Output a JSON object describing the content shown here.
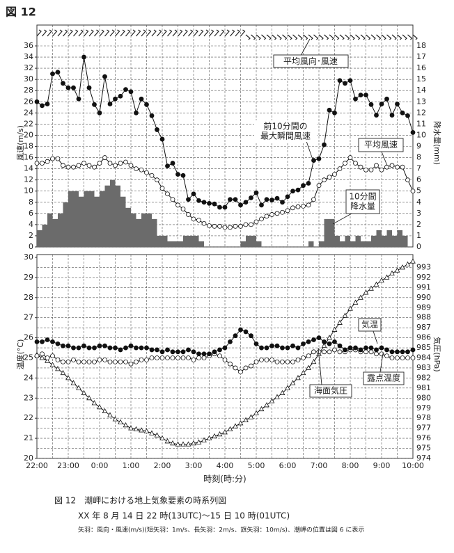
{
  "figure_title": "図 12",
  "caption": [
    "図 12　潮岬における地上気象要素の時系列図",
    "XX 年 8 月 14 日 22 時(13UTC)～15 日 10 時(01UTC)",
    "矢羽：風向・風速(m/s)(短矢羽：1m/s、長矢羽：2m/s、旗矢羽：10m/s)、潮岬の位置は図 6 に表示"
  ],
  "chart_data": [
    {
      "type": "line",
      "y_label": "風速(m/s)",
      "y2_label": "降水量(mm)",
      "annotations": [
        "平均風向･風速"
      ],
      "x": [
        "22:00",
        "22:10",
        "22:20",
        "22:30",
        "22:40",
        "22:50",
        "23:00",
        "23:10",
        "23:20",
        "23:30",
        "23:40",
        "23:50",
        "0:00",
        "0:10",
        "0:20",
        "0:30",
        "0:40",
        "0:50",
        "1:00",
        "1:10",
        "1:20",
        "1:30",
        "1:40",
        "1:50",
        "2:00",
        "2:10",
        "2:20",
        "2:30",
        "2:40",
        "2:50",
        "3:00",
        "3:10",
        "3:20",
        "3:30",
        "3:40",
        "3:50",
        "4:00",
        "4:10",
        "4:20",
        "4:30",
        "4:40",
        "4:50",
        "5:00",
        "5:10",
        "5:20",
        "5:30",
        "5:40",
        "5:50",
        "6:00",
        "6:10",
        "6:20",
        "6:30",
        "6:40",
        "6:50",
        "7:00",
        "7:10",
        "7:20",
        "7:30",
        "7:40",
        "7:50",
        "8:00",
        "8:10",
        "8:20",
        "8:30",
        "8:40",
        "8:50",
        "9:00",
        "9:10",
        "9:20",
        "9:30",
        "9:40",
        "9:50",
        "10:00"
      ],
      "ylim": [
        0,
        36
      ],
      "yticks": [
        0,
        2,
        4,
        6,
        8,
        10,
        12,
        14,
        16,
        18,
        20,
        22,
        24,
        26,
        28,
        30,
        32,
        34,
        36
      ],
      "y2lim": [
        0,
        18
      ],
      "y2ticks": [
        0,
        1,
        2,
        3,
        4,
        5,
        6,
        7,
        8,
        9,
        10,
        11,
        12,
        13,
        14,
        15,
        16,
        17,
        18
      ],
      "grid": true,
      "series": [
        {
          "name": [
            "10分間",
            "降水量"
          ],
          "type": "bar",
          "axis": "y2",
          "color": "#6b6b6b",
          "values": [
            1.5,
            2,
            3,
            2.5,
            3,
            4,
            5,
            5,
            4.5,
            5,
            5,
            4.5,
            5,
            5.5,
            6,
            5.5,
            4.5,
            3.5,
            3,
            2.5,
            3,
            3,
            2.5,
            1,
            1,
            0.5,
            0.5,
            0.5,
            1,
            1,
            1,
            0.5,
            0,
            0,
            0,
            0,
            0,
            0,
            0,
            0.5,
            1,
            1,
            0.5,
            0,
            0,
            0,
            0,
            0,
            0,
            0,
            0,
            0,
            0.5,
            0,
            0.5,
            2.5,
            2.5,
            1,
            0.5,
            1,
            0.5,
            1,
            0.5,
            0.5,
            1,
            1.5,
            1,
            1.5,
            1,
            1.5,
            1,
            0,
            0
          ]
        },
        {
          "name": [
            "前10分間の",
            "最大瞬間風速"
          ],
          "type": "line",
          "marker": "filled-circle",
          "color": "#111111",
          "values": [
            26,
            25.3,
            25.6,
            31,
            31.3,
            29.3,
            28.5,
            28.5,
            26.5,
            34,
            28.5,
            25.5,
            24,
            30.5,
            25.6,
            26.5,
            27,
            28.2,
            27.8,
            24,
            26.5,
            25.5,
            23.5,
            21,
            19.3,
            14.5,
            15,
            13,
            12.8,
            8.5,
            9.5,
            8.3,
            8,
            7.8,
            7.7,
            7.1,
            7.1,
            8.5,
            8.5,
            7.5,
            8,
            8.8,
            9.7,
            7.5,
            8.5,
            8.4,
            8.7,
            8,
            9,
            10,
            10.2,
            11,
            11.4,
            15.5,
            15.8,
            18.3,
            24.5,
            24,
            29.8,
            29.3,
            29.8,
            26.5,
            27.2,
            27.2,
            25.5,
            23.6,
            25.6,
            26.5,
            23.6,
            25.6,
            24,
            23.5,
            20.5
          ]
        },
        {
          "name": [
            "平均風速"
          ],
          "type": "line",
          "marker": "open-circle",
          "color": "#111111",
          "values": [
            15,
            15,
            15.3,
            15.8,
            15.8,
            14.6,
            14.3,
            14.3,
            14.6,
            15,
            14.6,
            14.3,
            15,
            16,
            15,
            14.6,
            15,
            15.2,
            14.6,
            14,
            13.8,
            13.3,
            12.8,
            12,
            10.5,
            9.5,
            8.5,
            7.5,
            6.8,
            5.8,
            5,
            4.8,
            4.2,
            3.8,
            3.7,
            3.7,
            3.5,
            3.5,
            3.7,
            3.7,
            4,
            4,
            4.5,
            5,
            5.5,
            5.8,
            6,
            6.2,
            6.5,
            7,
            7.2,
            7.3,
            7.5,
            8.5,
            11,
            12,
            12.5,
            13,
            14,
            15,
            16,
            15,
            14.3,
            13.8,
            13.8,
            14.6,
            13.8,
            14.3,
            14.6,
            14.3,
            14.3,
            12,
            10
          ]
        }
      ]
    },
    {
      "type": "line",
      "y_label": "温度(°C)",
      "y2_label": "気圧(hPa)",
      "x_label": "時刻(時:分)",
      "x": [
        "22:00",
        "22:10",
        "22:20",
        "22:30",
        "22:40",
        "22:50",
        "23:00",
        "23:10",
        "23:20",
        "23:30",
        "23:40",
        "23:50",
        "0:00",
        "0:10",
        "0:20",
        "0:30",
        "0:40",
        "0:50",
        "1:00",
        "1:10",
        "1:20",
        "1:30",
        "1:40",
        "1:50",
        "2:00",
        "2:10",
        "2:20",
        "2:30",
        "2:40",
        "2:50",
        "3:00",
        "3:10",
        "3:20",
        "3:30",
        "3:40",
        "3:50",
        "4:00",
        "4:10",
        "4:20",
        "4:30",
        "4:40",
        "4:50",
        "5:00",
        "5:10",
        "5:20",
        "5:30",
        "5:40",
        "5:50",
        "6:00",
        "6:10",
        "6:20",
        "6:30",
        "6:40",
        "6:50",
        "7:00",
        "7:10",
        "7:20",
        "7:30",
        "7:40",
        "7:50",
        "8:00",
        "8:10",
        "8:20",
        "8:30",
        "8:40",
        "8:50",
        "9:00",
        "9:10",
        "9:20",
        "9:30",
        "9:40",
        "9:50",
        "10:00"
      ],
      "xticks": [
        "22:00",
        "23:00",
        "0:00",
        "1:00",
        "2:00",
        "3:00",
        "4:00",
        "5:00",
        "6:00",
        "7:00",
        "8:00",
        "9:00",
        "10:00"
      ],
      "ylim": [
        20,
        30
      ],
      "yticks": [
        20,
        21,
        22,
        23,
        24,
        25,
        26,
        27,
        28,
        29,
        30
      ],
      "y2lim": [
        974,
        994
      ],
      "y2ticks": [
        974,
        975,
        976,
        977,
        978,
        979,
        980,
        981,
        982,
        983,
        984,
        985,
        986,
        987,
        988,
        989,
        990,
        991,
        992,
        993
      ],
      "grid": true,
      "series": [
        {
          "name": [
            "海面気圧"
          ],
          "type": "line",
          "axis": "y2",
          "marker": "open-triangle",
          "color": "#111111",
          "values": [
            984.3,
            984.0,
            983.7,
            983.3,
            982.9,
            982.5,
            982.0,
            981.5,
            981.0,
            980.5,
            980.0,
            979.5,
            979.1,
            978.7,
            978.3,
            977.9,
            977.6,
            977.3,
            977.0,
            976.9,
            976.8,
            976.7,
            976.5,
            976.3,
            976.0,
            975.7,
            975.5,
            975.4,
            975.4,
            975.4,
            975.5,
            975.6,
            975.8,
            976.0,
            976.2,
            976.4,
            976.6,
            976.9,
            977.2,
            977.5,
            977.8,
            978.1,
            978.5,
            978.9,
            979.3,
            979.7,
            980.1,
            980.5,
            981.0,
            981.5,
            982.0,
            982.5,
            983.0,
            983.6,
            984.4,
            985.2,
            986.0,
            986.8,
            987.5,
            988.2,
            988.9,
            989.5,
            990.0,
            990.5,
            990.9,
            991.3,
            991.7,
            992.0,
            992.4,
            992.7,
            993.0,
            993.3,
            993.6
          ]
        },
        {
          "name": [
            "露点温度"
          ],
          "type": "line",
          "marker": "open-circle",
          "color": "#111111",
          "values": [
            25.1,
            25.2,
            25.0,
            25.1,
            24.9,
            24.8,
            24.8,
            24.9,
            24.8,
            24.8,
            24.8,
            24.8,
            24.9,
            24.9,
            24.8,
            24.8,
            24.8,
            24.8,
            24.7,
            24.8,
            24.9,
            24.9,
            25.0,
            25.0,
            25.0,
            25.0,
            25.0,
            25.0,
            25.0,
            25.0,
            24.9,
            25.0,
            25.0,
            25.1,
            25.2,
            25.1,
            24.9,
            24.7,
            24.5,
            24.3,
            24.5,
            24.6,
            24.8,
            24.9,
            24.9,
            24.9,
            24.8,
            24.8,
            24.8,
            24.8,
            24.9,
            25.0,
            25.1,
            25.3,
            25.3,
            25.3,
            25.3,
            25.4,
            25.3,
            25.3,
            25.4,
            25.4,
            25.3,
            25.3,
            25.3,
            25.2,
            25.2,
            25.1,
            25.0,
            25.0,
            25.0,
            25.0,
            25.0
          ]
        },
        {
          "name": [
            "気温"
          ],
          "type": "line",
          "marker": "filled-circle",
          "color": "#111111",
          "values": [
            25.8,
            25.8,
            25.9,
            25.8,
            25.7,
            25.6,
            25.6,
            25.5,
            25.5,
            25.6,
            25.5,
            25.5,
            25.6,
            25.6,
            25.5,
            25.5,
            25.4,
            25.5,
            25.6,
            25.5,
            25.5,
            25.5,
            25.4,
            25.4,
            25.3,
            25.4,
            25.3,
            25.3,
            25.3,
            25.4,
            25.3,
            25.2,
            25.2,
            25.2,
            25.3,
            25.4,
            25.5,
            25.8,
            26.1,
            26.4,
            26.3,
            26.1,
            25.7,
            25.5,
            25.5,
            25.6,
            25.6,
            25.5,
            25.5,
            25.6,
            25.5,
            25.7,
            25.8,
            25.9,
            26.0,
            25.8,
            25.7,
            25.8,
            25.6,
            25.4,
            25.5,
            25.5,
            25.4,
            25.5,
            25.5,
            25.4,
            25.5,
            25.4,
            25.3,
            25.3,
            25.3,
            25.3,
            25.4
          ]
        }
      ]
    }
  ]
}
